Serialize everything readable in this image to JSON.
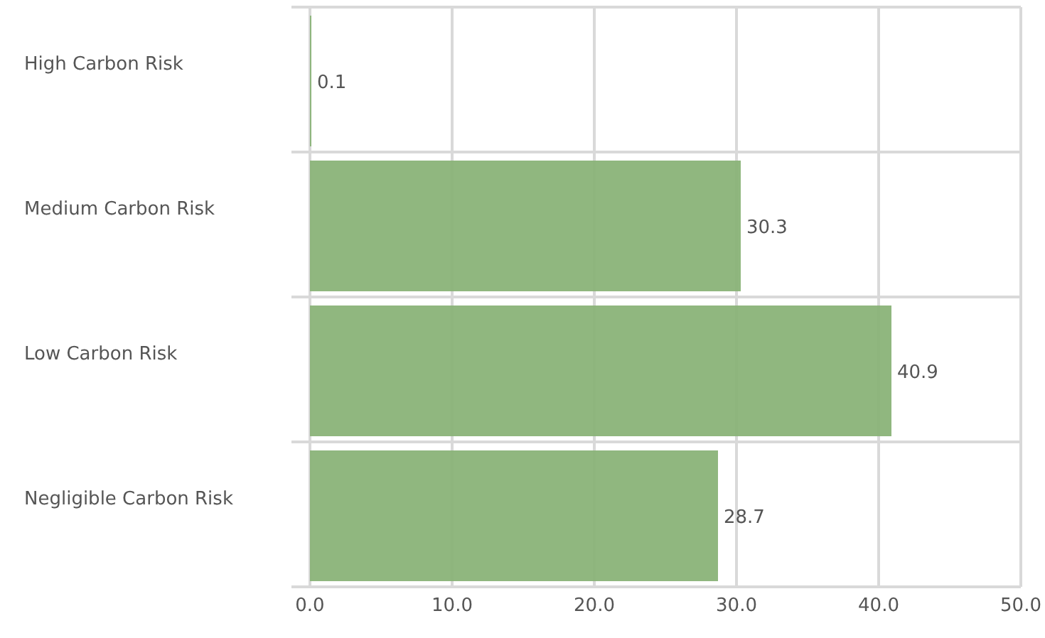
{
  "chart_data": {
    "type": "bar",
    "orientation": "horizontal",
    "categories": [
      "High Carbon Risk",
      "Medium Carbon Risk",
      "Low Carbon Risk",
      "Negligible Carbon Risk"
    ],
    "values": [
      0.1,
      30.3,
      40.9,
      28.7
    ],
    "color": "#8ab378",
    "xlim": [
      0,
      50
    ],
    "xticks": [
      {
        "value": 0,
        "label": "0.0"
      },
      {
        "value": 10,
        "label": "10.0"
      },
      {
        "value": 20,
        "label": "20.0"
      },
      {
        "value": 30,
        "label": "30.0"
      },
      {
        "value": 40,
        "label": "40.0"
      },
      {
        "value": 50,
        "label": "50.0"
      }
    ],
    "grid": "x",
    "data_labels": true
  }
}
